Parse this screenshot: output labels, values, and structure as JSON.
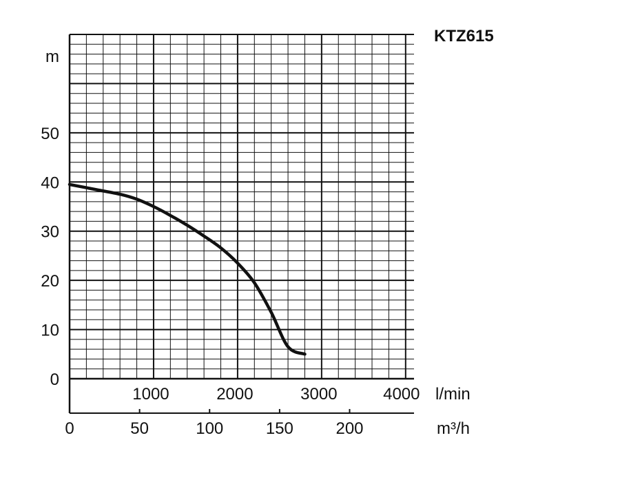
{
  "chart_data": {
    "type": "line",
    "title": "KTZ615",
    "ylabel": "m",
    "ylim": [
      0,
      70
    ],
    "y_major_ticks": [
      0,
      10,
      20,
      30,
      40,
      50
    ],
    "y_major_tick_labels": [
      "0",
      "10",
      "20",
      "30",
      "40",
      "50"
    ],
    "xlim": [
      0,
      4100
    ],
    "xlabel": "l/min",
    "x_major_ticks": [
      1000,
      2000,
      3000,
      4000
    ],
    "x_major_tick_labels": [
      "1000",
      "2000",
      "3000",
      "4000"
    ],
    "x2label": "m³/h",
    "x2_ticks": [
      0,
      50,
      100,
      150,
      200
    ],
    "x2_tick_labels": [
      "0",
      "50",
      "100",
      "150",
      "200"
    ],
    "grid": true,
    "line_color": "#111111",
    "series": [
      {
        "x": [
          0,
          300,
          600,
          800,
          1000,
          1200,
          1400,
          1600,
          1800,
          2000,
          2200,
          2400,
          2600,
          2800
        ],
        "y": [
          39.5,
          38.5,
          37.5,
          36.5,
          35,
          33.2,
          31.2,
          29,
          26.6,
          23.5,
          19.5,
          13.5,
          6.5,
          5
        ]
      }
    ]
  }
}
